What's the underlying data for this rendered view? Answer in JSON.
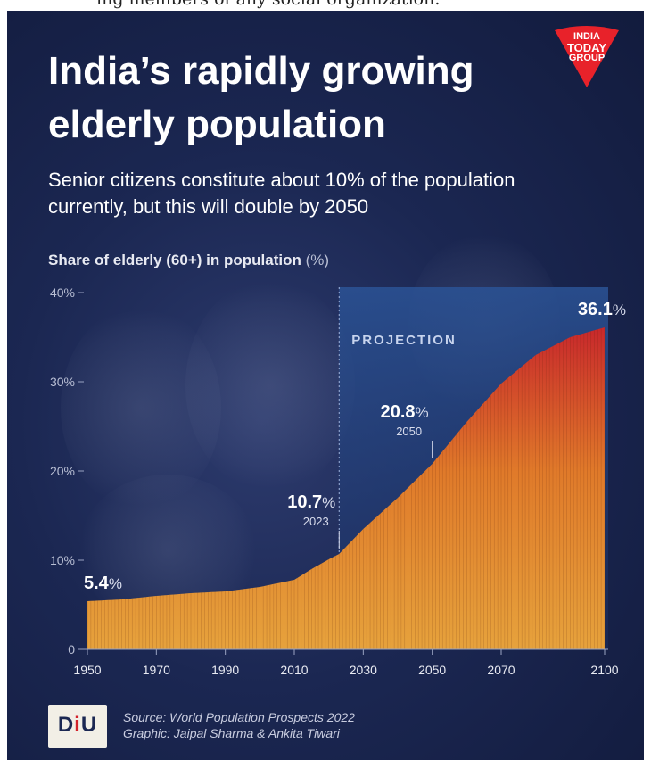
{
  "clipped_text": "ing members of any social organization.",
  "header": {
    "title_line1": "India’s rapidly growing",
    "title_line2": "elderly population",
    "subtitle": "Senior citizens constitute about 10% of the population currently, but this will double by 2050"
  },
  "logo": {
    "line1": "INDIA",
    "line2": "TODAY",
    "line3": "GROUP",
    "color": "#e8222a"
  },
  "chart_label": {
    "main": "Share of elderly (60+) in population",
    "unit": "(%)"
  },
  "chart_data": {
    "type": "bar",
    "x": [
      1950,
      1960,
      1970,
      1980,
      1990,
      2000,
      2010,
      2015,
      2020,
      2023,
      2030,
      2040,
      2050,
      2060,
      2070,
      2080,
      2090,
      2100
    ],
    "values": [
      5.4,
      5.6,
      6.0,
      6.3,
      6.5,
      7.0,
      7.8,
      9.0,
      10.1,
      10.7,
      13.5,
      17.0,
      20.8,
      25.5,
      29.8,
      33.0,
      35.0,
      36.1
    ],
    "ylim": [
      0,
      40
    ],
    "xlim": [
      1950,
      2100
    ],
    "y_ticks": [
      "0",
      "10%",
      "20%",
      "30%",
      "40%"
    ],
    "x_ticks": [
      "1950",
      "1970",
      "1990",
      "2010",
      "2030",
      "2050",
      "2070",
      "2100"
    ],
    "projection_start": 2023,
    "projection_label": "PROJECTION",
    "annotations": [
      {
        "year": 1950,
        "value_text": "5.4",
        "unit": "%",
        "year_text": ""
      },
      {
        "year": 2023,
        "value_text": "10.7",
        "unit": "%",
        "year_text": "2023"
      },
      {
        "year": 2050,
        "value_text": "20.8",
        "unit": "%",
        "year_text": "2050"
      },
      {
        "year": 2100,
        "value_text": "36.1",
        "unit": "%",
        "year_text": ""
      }
    ],
    "colors": {
      "bar_low": "#e8a33d",
      "bar_high": "#c4262b",
      "projection_bg": "#2a4c86"
    }
  },
  "footer": {
    "logo_text_d": "D",
    "logo_text_i": "i",
    "logo_text_u": "U",
    "source": "Source: World Population Prospects 2022",
    "graphic": "Graphic: Jaipal Sharma & Ankita Tiwari"
  }
}
